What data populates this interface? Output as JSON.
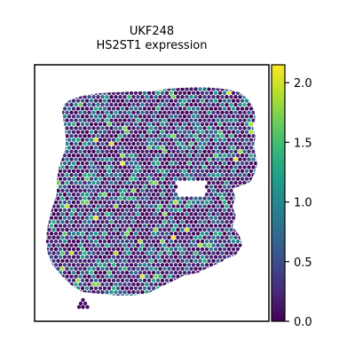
{
  "chart_data": {
    "type": "scatter",
    "title": "UKF248",
    "subtitle": "HS2ST1 expression",
    "colormap": "viridis",
    "colorbar": {
      "ticks": [
        0.0,
        0.5,
        1.0,
        1.5,
        2.0
      ],
      "tick_labels": [
        "0.0",
        "0.5",
        "1.0",
        "1.5",
        "2.0"
      ],
      "range": [
        0.0,
        2.15
      ]
    },
    "grid": false,
    "axes_visible": false,
    "background_color": "#ffffff",
    "colors": {
      "low": "#440154",
      "mid": "#21918c",
      "high": "#fde725"
    }
  }
}
